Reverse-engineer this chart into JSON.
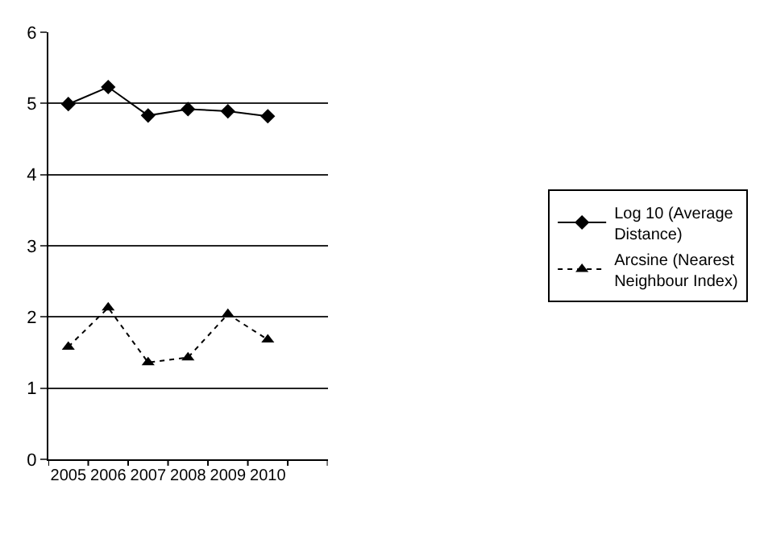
{
  "chart_data": {
    "type": "line",
    "categories": [
      "2005",
      "2006",
      "2007",
      "2008",
      "2009",
      "2010",
      null
    ],
    "series": [
      {
        "name": "Log 10 (Average Distance)",
        "color": "#000000",
        "values": [
          4.99,
          5.23,
          4.83,
          4.92,
          4.89,
          4.82,
          null
        ],
        "marker": "diamond",
        "line_style": "solid"
      },
      {
        "name": "Arcsine (Nearest Neighbour Index)",
        "color": "#000000",
        "values": [
          1.58,
          2.13,
          1.36,
          1.43,
          2.04,
          1.68,
          null
        ],
        "marker": "triangle",
        "line_style": "dotted"
      }
    ],
    "ylim": [
      0,
      6
    ],
    "yticks": [
      0,
      1,
      2,
      3,
      4,
      5,
      6
    ],
    "grid": "y",
    "legend": "right"
  }
}
